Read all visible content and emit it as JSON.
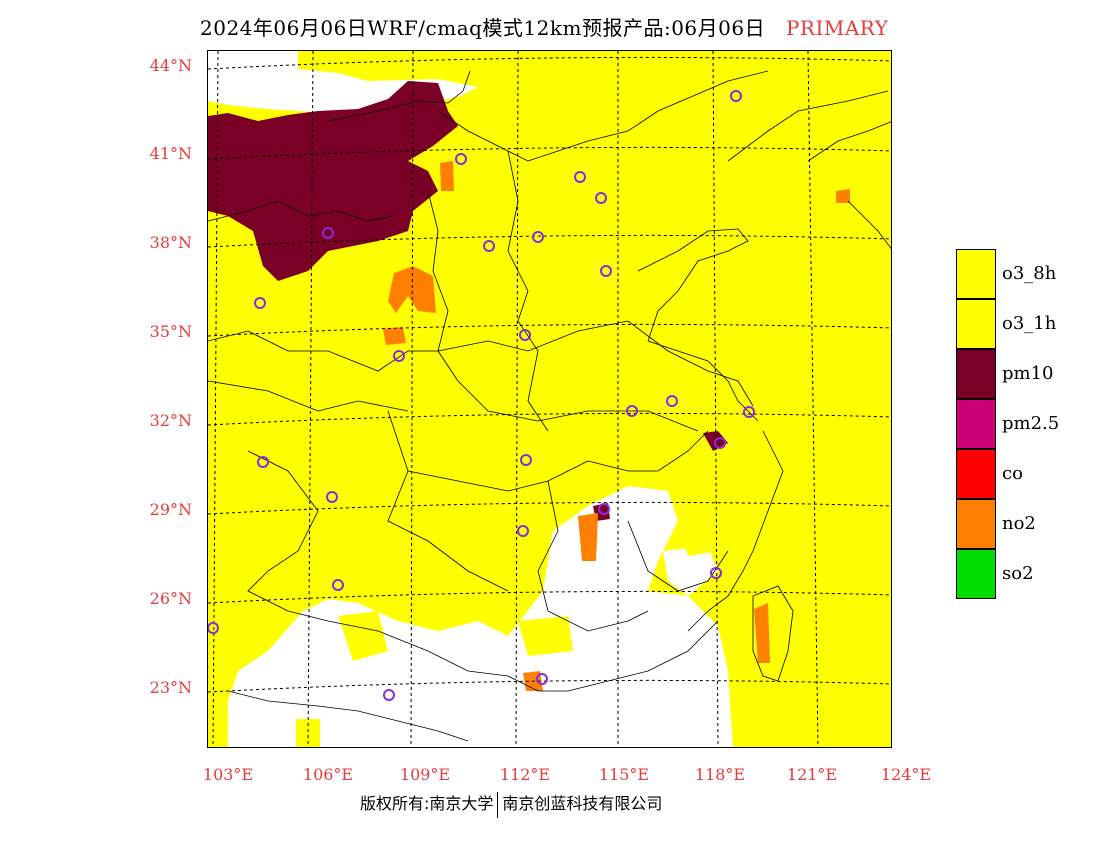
{
  "title": {
    "text": "2024年06月06日WRF/cmaq模式12km预报产品:06月06日",
    "tag": "PRIMARY"
  },
  "map": {
    "lat_labels": [
      "44°N",
      "41°N",
      "38°N",
      "35°N",
      "32°N",
      "29°N",
      "26°N",
      "23°N"
    ],
    "lon_labels": [
      "103°E",
      "106°E",
      "109°E",
      "112°E",
      "115°E",
      "118°E",
      "121°E",
      "124°E"
    ],
    "background_color": "#ffff00"
  },
  "legend": [
    {
      "label": "o3_8h",
      "color": "#ffff00"
    },
    {
      "label": "o3_1h",
      "color": "#ffff00"
    },
    {
      "label": "pm10",
      "color": "#7a0025"
    },
    {
      "label": "pm2.5",
      "color": "#cc0077"
    },
    {
      "label": "co",
      "color": "#ff0000"
    },
    {
      "label": "no2",
      "color": "#ff8000"
    },
    {
      "label": "so2",
      "color": "#00dd00"
    }
  ],
  "footer": {
    "left": "版权所有:南京大学",
    "right": "南京创蓝科技有限公司"
  }
}
